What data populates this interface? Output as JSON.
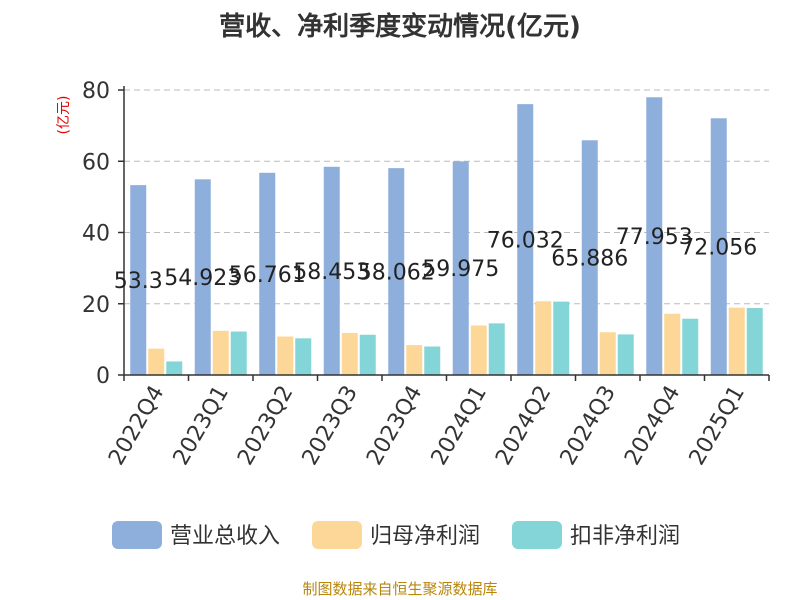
{
  "chart_data": {
    "type": "bar",
    "title": "营收、净利季度变动情况(亿元)",
    "ylabel": "(亿元)",
    "xlabel": "",
    "ylim": [
      0,
      80
    ],
    "yticks": [
      "0",
      "20",
      "40",
      "60",
      "80"
    ],
    "grid": true,
    "legend_position": "bottom",
    "categories": [
      "2022Q4",
      "2023Q1",
      "2023Q2",
      "2023Q3",
      "2023Q4",
      "2024Q1",
      "2024Q2",
      "2024Q3",
      "2024Q4",
      "2025Q1"
    ],
    "series": [
      {
        "name": "营业总收入",
        "color": "#8eaedc",
        "values": [
          53.3,
          54.923,
          56.761,
          58.453,
          58.062,
          59.975,
          76.032,
          65.886,
          77.953,
          72.056
        ],
        "labels": [
          "53.3",
          "54.923",
          "56.761",
          "58.453",
          "58.062",
          "59.975",
          "76.032",
          "65.886",
          "77.953",
          "72.056"
        ]
      },
      {
        "name": "归母净利润",
        "color": "#fdd797",
        "values": [
          7.4,
          12.4,
          10.8,
          11.8,
          8.4,
          13.9,
          20.7,
          12.0,
          17.2,
          18.9
        ]
      },
      {
        "name": "扣非净利润",
        "color": "#84d5d8",
        "values": [
          3.8,
          12.2,
          10.3,
          11.3,
          8.0,
          14.5,
          20.6,
          11.4,
          15.8,
          18.8
        ]
      }
    ]
  },
  "source": "制图数据来自恒生聚源数据库"
}
